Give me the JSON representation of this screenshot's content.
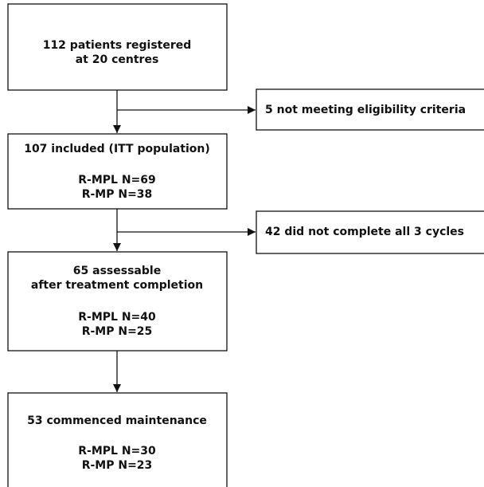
{
  "nodes": [
    {
      "lines": [
        "112 patients registered",
        "at 20 centres"
      ]
    },
    {
      "lines": [
        "107 included (ITT population)",
        "R-MPL N=69",
        "R-MP N=38"
      ]
    },
    {
      "lines": [
        "65 assessable",
        "after treatment completion",
        "R-MPL N=40",
        "R-MP N=25"
      ]
    },
    {
      "lines": [
        "53 commenced maintenance",
        "R-MPL N=30",
        "R-MP N=23"
      ]
    }
  ],
  "exclusions": [
    {
      "label": "5 not meeting eligibility criteria"
    },
    {
      "label": "42 did not complete all 3 cycles"
    }
  ]
}
